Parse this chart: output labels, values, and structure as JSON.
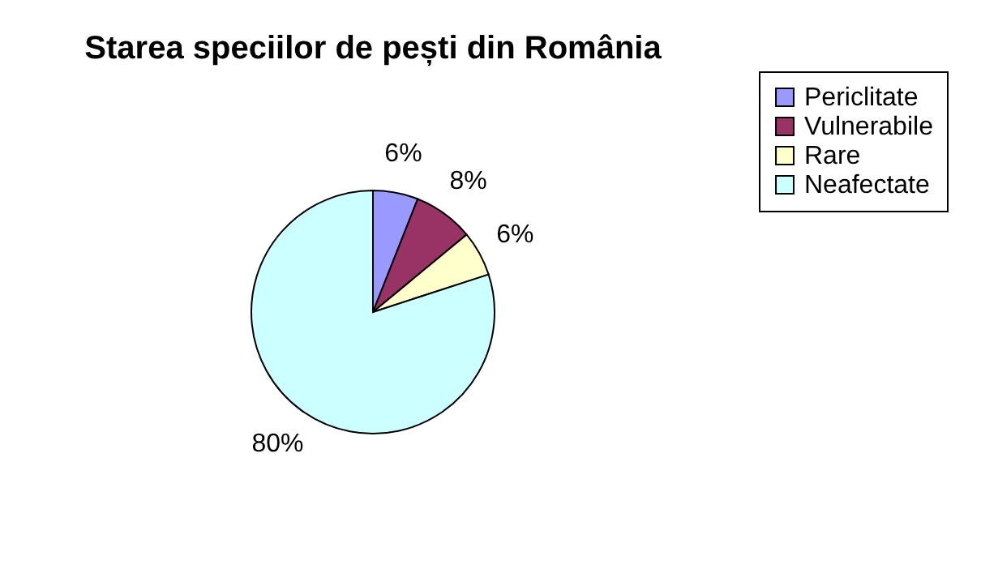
{
  "chart_data": {
    "type": "pie",
    "title": "Starea speciilor de pești din România",
    "categories": [
      "Periclitate",
      "Vulnerabile",
      "Rare",
      "Neafectate"
    ],
    "values": [
      6,
      8,
      6,
      80
    ],
    "colors": [
      "#9999ff",
      "#993366",
      "#ffffcc",
      "#ccffff"
    ],
    "value_labels": [
      "6%",
      "8%",
      "6%",
      "80%"
    ],
    "legend": "right"
  }
}
